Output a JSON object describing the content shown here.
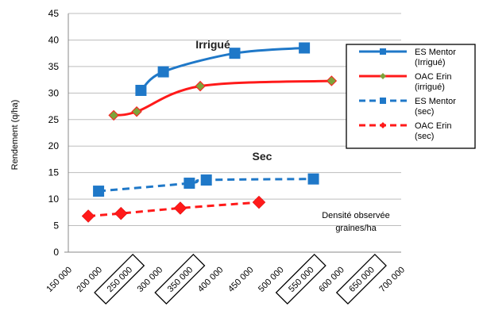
{
  "chart_data": {
    "type": "line",
    "ylabel": "Rendement (q/ha)",
    "xlabel": "",
    "ylim": [
      0,
      45
    ],
    "yticks": [
      0,
      5,
      10,
      15,
      20,
      25,
      30,
      35,
      40,
      45
    ],
    "xlim": [
      150000,
      700000
    ],
    "xticks": [
      "150 000",
      "200 000",
      "250 000",
      "300 000",
      "350 000",
      "400 000",
      "450 000",
      "500 000",
      "550 000",
      "600 000",
      "650 000",
      "700 000"
    ],
    "xticks_boxed": [
      "250 000",
      "350 000",
      "550 000",
      "650 000"
    ],
    "grid": true,
    "legend": "right",
    "annotations": {
      "irrigated": "Irrigué",
      "dry": "Sec",
      "observed_line1": "Densité observée",
      "observed_line2": "graines/ha"
    },
    "series": [
      {
        "name_lines": [
          "ES Mentor",
          "(Irrigué)"
        ],
        "color": "#1f78c8",
        "dash": false,
        "marker": "square",
        "points": [
          [
            270000,
            30.5
          ],
          [
            307000,
            34
          ],
          [
            425000,
            37.5
          ],
          [
            540000,
            38.5
          ]
        ]
      },
      {
        "name_lines": [
          "OAC Erin",
          "(irrigué)"
        ],
        "color": "#ff1a1a",
        "dash": false,
        "marker": "diamond-green",
        "points": [
          [
            225000,
            25.8
          ],
          [
            263000,
            26.5
          ],
          [
            368000,
            31.3
          ],
          [
            585000,
            32.3
          ]
        ]
      },
      {
        "name_lines": [
          "ES Mentor",
          "(sec)"
        ],
        "color": "#1f78c8",
        "dash": true,
        "marker": "square",
        "points": [
          [
            200000,
            11.5
          ],
          [
            350000,
            13
          ],
          [
            378000,
            13.6
          ],
          [
            555000,
            13.8
          ]
        ]
      },
      {
        "name_lines": [
          "OAC Erin",
          "(sec)"
        ],
        "color": "#ff1a1a",
        "dash": true,
        "marker": "diamond-red",
        "points": [
          [
            183000,
            6.8
          ],
          [
            237000,
            7.3
          ],
          [
            335000,
            8.3
          ],
          [
            465000,
            9.4
          ]
        ]
      }
    ]
  }
}
